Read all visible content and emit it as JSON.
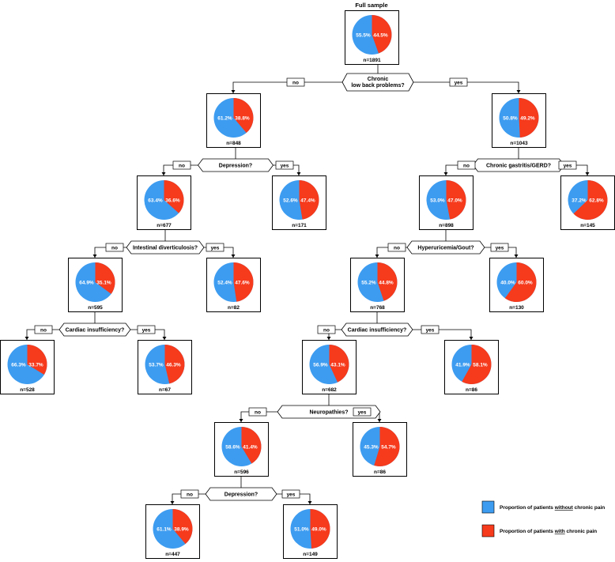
{
  "colors": {
    "without": "#3d9cf0",
    "with": "#f63a1c",
    "line": "#000000",
    "box_bg": "#ffffff"
  },
  "title": "Full sample",
  "nodes": [
    {
      "id": "root",
      "without": "55.5%",
      "with": "44.5%",
      "n": "n=1891"
    },
    {
      "id": "n848",
      "without": "61.2%",
      "with": "38.8%",
      "n": "n=848"
    },
    {
      "id": "n1043",
      "without": "50.8%",
      "with": "49.2%",
      "n": "n=1043"
    },
    {
      "id": "n677",
      "without": "63.4%",
      "with": "36.6%",
      "n": "n=677"
    },
    {
      "id": "n171",
      "without": "52.6%",
      "with": "47.4%",
      "n": "n=171"
    },
    {
      "id": "n898",
      "without": "53.0%",
      "with": "47.0%",
      "n": "n=898"
    },
    {
      "id": "n145",
      "without": "37.2%",
      "with": "62.8%",
      "n": "n=145"
    },
    {
      "id": "n595",
      "without": "64.9%",
      "with": "35.1%",
      "n": "n=595"
    },
    {
      "id": "n82",
      "without": "52.4%",
      "with": "47.6%",
      "n": "n=82"
    },
    {
      "id": "n768",
      "without": "55.2%",
      "with": "44.8%",
      "n": "n=768"
    },
    {
      "id": "n130",
      "without": "40.0%",
      "with": "60.0%",
      "n": "n=130"
    },
    {
      "id": "n528",
      "without": "66.3%",
      "with": "33.7%",
      "n": "n=528"
    },
    {
      "id": "n67",
      "without": "53.7%",
      "with": "46.3%",
      "n": "n=67"
    },
    {
      "id": "n682",
      "without": "56.9%",
      "with": "43.1%",
      "n": "n=682"
    },
    {
      "id": "n86a",
      "without": "41.9%",
      "with": "58.1%",
      "n": "n=86"
    },
    {
      "id": "n596",
      "without": "58.6%",
      "with": "41.4%",
      "n": "n=596"
    },
    {
      "id": "n86b",
      "without": "45.3%",
      "with": "54.7%",
      "n": "n=86"
    },
    {
      "id": "n447",
      "without": "61.1%",
      "with": "38.9%",
      "n": "n=447"
    },
    {
      "id": "n149",
      "without": "51.0%",
      "with": "49.0%",
      "n": "n=149"
    }
  ],
  "splits": [
    {
      "id": "s1",
      "question": [
        "Chronic",
        "low back problems?"
      ],
      "no": "no",
      "yes": "yes"
    },
    {
      "id": "s2",
      "question": [
        "Depression?"
      ],
      "no": "no",
      "yes": "yes"
    },
    {
      "id": "s3",
      "question": [
        "Chronic gastritis/GERD?"
      ],
      "no": "no",
      "yes": "yes"
    },
    {
      "id": "s4",
      "question": [
        "Intestinal diverticulosis?"
      ],
      "no": "no",
      "yes": "yes"
    },
    {
      "id": "s5",
      "question": [
        "Hyperuricemia/Gout?"
      ],
      "no": "no",
      "yes": "yes"
    },
    {
      "id": "s6",
      "question": [
        "Cardiac insufficiency?"
      ],
      "no": "no",
      "yes": "yes"
    },
    {
      "id": "s7",
      "question": [
        "Cardiac insufficiency?"
      ],
      "no": "no",
      "yes": "yes"
    },
    {
      "id": "s8",
      "question": [
        "Neuropathies?"
      ],
      "no": "no",
      "yes": "yes"
    },
    {
      "id": "s9",
      "question": [
        "Depression?"
      ],
      "no": "no",
      "yes": "yes"
    }
  ],
  "legend": [
    {
      "key": "without",
      "parts": [
        "Proportion of patients ",
        "without",
        " chronic pain"
      ]
    },
    {
      "key": "with",
      "parts": [
        "Proportion of patients ",
        "with",
        " chronic pain"
      ]
    }
  ]
}
